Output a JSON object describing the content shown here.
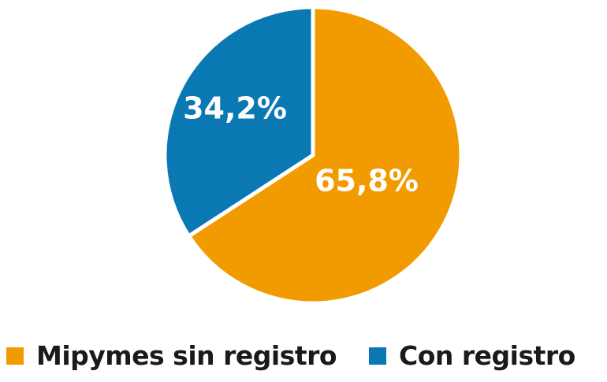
{
  "chart_data": {
    "type": "pie",
    "slices": [
      {
        "name": "Mipymes sin registro",
        "value": 65.8,
        "label": "65,8%",
        "color": "#F29B00"
      },
      {
        "name": "Con registro",
        "value": 34.2,
        "label": "34,2%",
        "color": "#0A78B2"
      }
    ],
    "start": "12 o'clock",
    "direction": "clockwise",
    "legend": "bottom"
  }
}
